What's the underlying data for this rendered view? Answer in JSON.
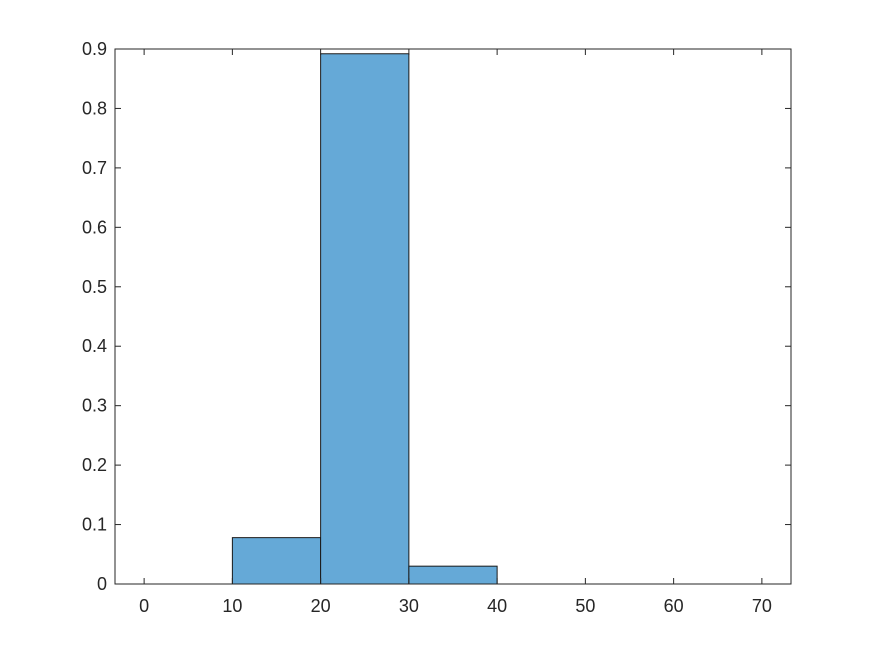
{
  "chart_data": {
    "type": "bar",
    "title": "",
    "xlabel": "",
    "ylabel": "",
    "bins": [
      {
        "start": 10,
        "end": 20,
        "value": 0.078
      },
      {
        "start": 20,
        "end": 30,
        "value": 0.892
      },
      {
        "start": 30,
        "end": 40,
        "value": 0.03
      }
    ],
    "xlim": [
      -3.3,
      73.3
    ],
    "ylim": [
      0,
      0.9
    ],
    "xticks": [
      0,
      10,
      20,
      30,
      40,
      50,
      60,
      70
    ],
    "xtick_labels": [
      "0",
      "10",
      "20",
      "30",
      "40",
      "50",
      "60",
      "70"
    ],
    "yticks": [
      0,
      0.1,
      0.2,
      0.3,
      0.4,
      0.5,
      0.6,
      0.7,
      0.8,
      0.9
    ],
    "ytick_labels": [
      "0",
      "0.1",
      "0.2",
      "0.3",
      "0.4",
      "0.5",
      "0.6",
      "0.7",
      "0.8",
      "0.9"
    ],
    "grid": false,
    "colors": {
      "bar_fill": "#65a9d7",
      "bar_edge": "#1a1a1a",
      "axis": "#262626"
    }
  }
}
